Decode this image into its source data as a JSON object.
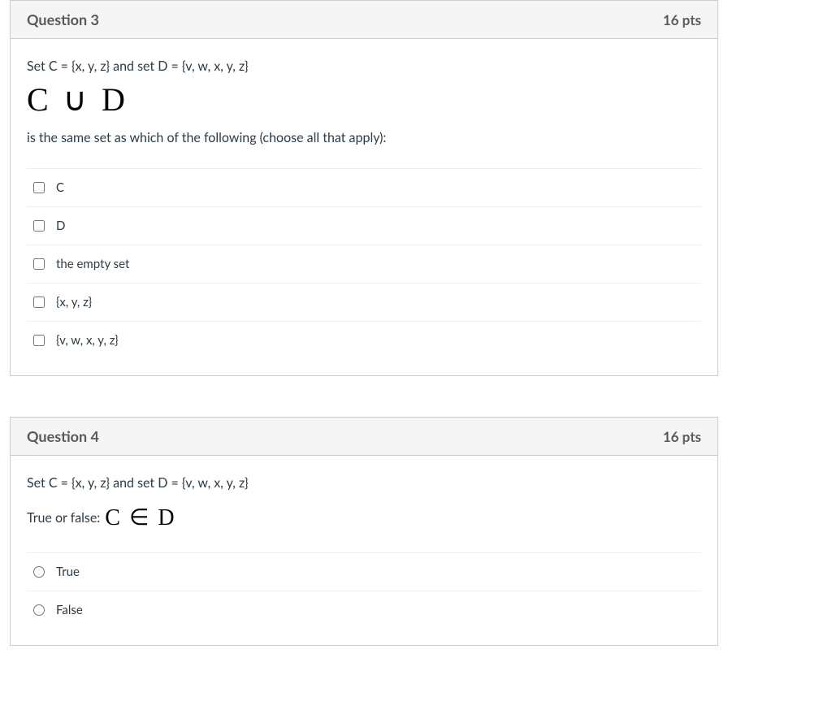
{
  "questions": [
    {
      "title": "Question 3",
      "points": "16 pts",
      "prompt_line1": "Set C = {x, y, z} and set D = {v, w, x, y, z}",
      "math": "C ∪ D",
      "prompt_line2": "is the same set as which of the following (choose all that apply):",
      "input_type": "checkbox",
      "answers": [
        {
          "label": "C"
        },
        {
          "label": "D"
        },
        {
          "label": "the empty set"
        },
        {
          "label": "{x, y, z}"
        },
        {
          "label": "{v, w, x, y, z}"
        }
      ]
    },
    {
      "title": "Question 4",
      "points": "16 pts",
      "prompt_line1": "Set C = {x, y, z} and set D = {v, w, x, y, z}",
      "tf_prefix": "True or false:",
      "math_inline": "C ∈ D",
      "input_type": "radio",
      "answers": [
        {
          "label": "True"
        },
        {
          "label": "False"
        }
      ]
    }
  ]
}
